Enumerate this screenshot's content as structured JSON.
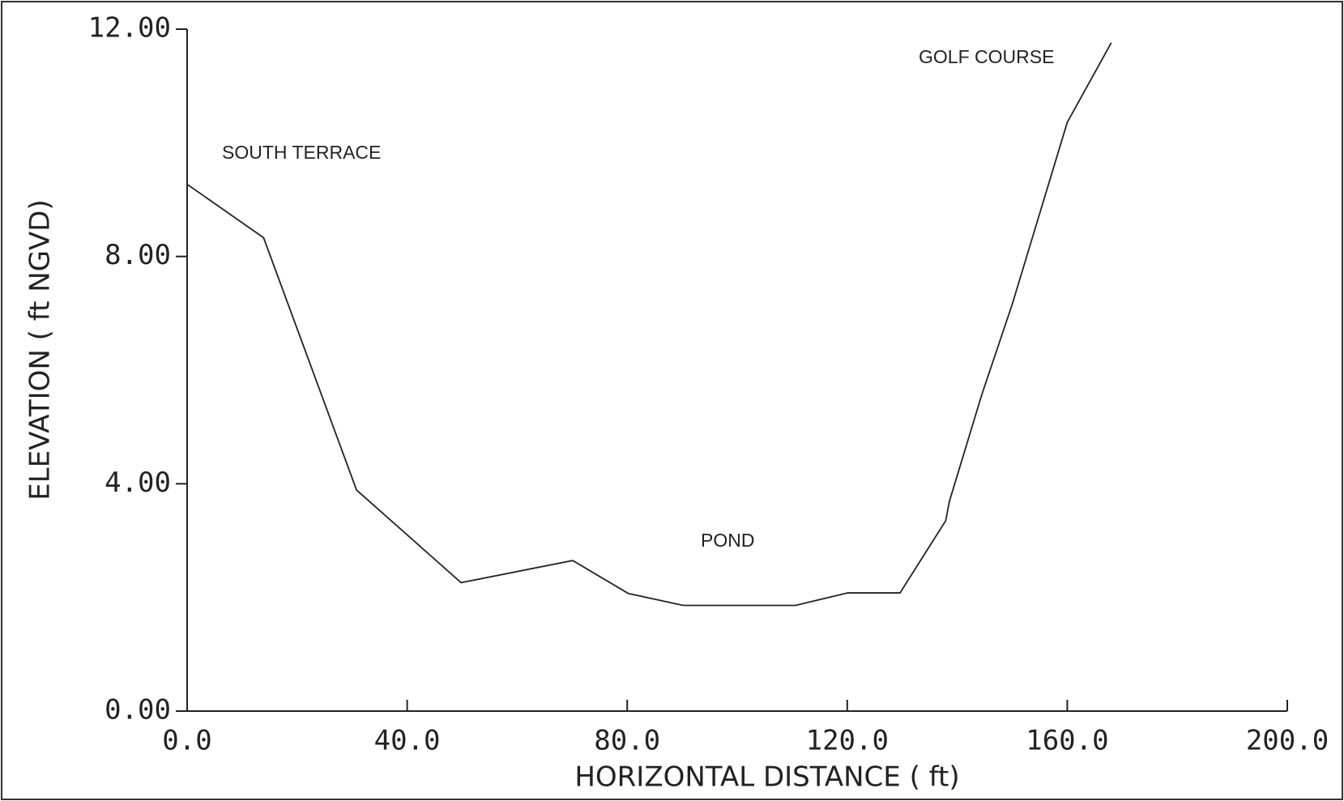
{
  "chart_data": {
    "type": "line",
    "xlabel": "HORIZONTAL DISTANCE ( ft)",
    "ylabel": "ELEVATION ( ft NGVD)",
    "annotations": [
      "SOUTH TERRACE",
      "POND",
      "GOLF COURSE"
    ],
    "x": [
      0,
      13.9,
      30.8,
      49.8,
      70.1,
      80.2,
      90.2,
      110.6,
      120.1,
      129.6,
      137.9,
      138.6,
      144.5,
      150,
      160,
      168
    ],
    "series": [
      {
        "name": null,
        "color": "#222222",
        "values": [
          9.27,
          8.33,
          3.89,
          2.26,
          2.65,
          2.07,
          1.86,
          1.86,
          2.08,
          2.08,
          3.35,
          3.7,
          5.58,
          7.16,
          10.36,
          11.76
        ]
      }
    ],
    "xlim": [
      0,
      200
    ],
    "xticks": [
      {
        "value": 0,
        "label": "0.0"
      },
      {
        "value": 40,
        "label": "40.0"
      },
      {
        "value": 80,
        "label": "80.0"
      },
      {
        "value": 120,
        "label": "120.0"
      },
      {
        "value": 160,
        "label": "160.0"
      },
      {
        "value": 200,
        "label": "200.0"
      }
    ],
    "ylim": [
      0,
      12
    ],
    "yticks": [
      {
        "value": 0,
        "label": "0.00"
      },
      {
        "value": 4,
        "label": "4.00"
      },
      {
        "value": 8,
        "label": "8.00"
      },
      {
        "value": 12,
        "label": "12.00"
      }
    ],
    "grid": false
  }
}
